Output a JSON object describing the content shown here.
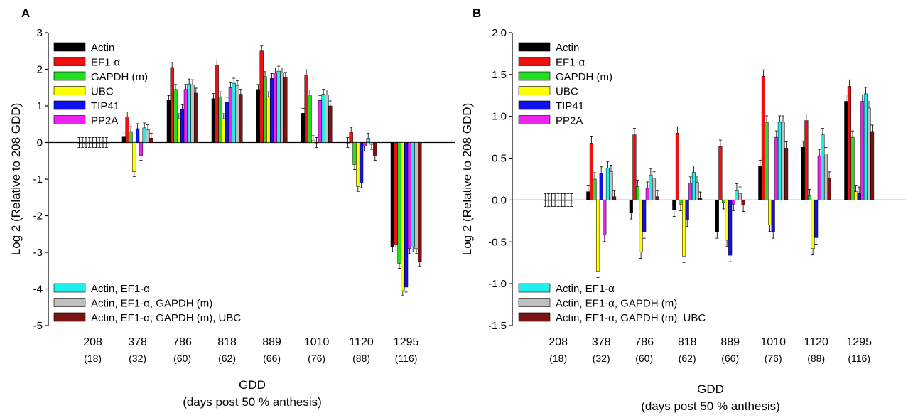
{
  "chart_data": [
    {
      "panel": "A",
      "type": "bar",
      "xlabel": "GDD",
      "xlabel2": "(days post 50 % anthesis)",
      "ylabel": "Log 2 (Relative to 208 GDD)",
      "ylim": [
        -5,
        3
      ],
      "yticks": [
        "3",
        "2",
        "1",
        "0",
        "-1",
        "-2",
        "-3",
        "-4",
        "-5"
      ],
      "yticks_values": [
        3,
        2,
        1,
        0,
        -1,
        -2,
        -3,
        -4,
        -5
      ],
      "categories": [
        "208",
        "378",
        "786",
        "818",
        "889",
        "1010",
        "1120",
        "1295"
      ],
      "category_sublabels": [
        "(18)",
        "(32)",
        "(60)",
        "(62)",
        "(66)",
        "(76)",
        "(88)",
        "(116)"
      ],
      "legend_top": [
        "Actin",
        "EF1-α",
        "GAPDH (m)",
        "UBC",
        "TIP41",
        "PP2A"
      ],
      "legend_bottom": [
        "Actin, EF1-α",
        "Actin, EF1-α, GAPDH (m)",
        "Actin, EF1-α, GAPDH (m), UBC"
      ],
      "series": [
        {
          "name": "Actin",
          "color": "#000000",
          "values": [
            0,
            0.15,
            1.15,
            1.2,
            1.45,
            0.8,
            0,
            -2.85
          ],
          "errors": [
            0.08,
            0.1,
            0.1,
            0.08,
            0.1,
            0.07,
            0.1,
            0.1
          ]
        },
        {
          "name": "EF1-α",
          "color": "#ee1111",
          "values": [
            0,
            0.7,
            2.05,
            2.12,
            2.5,
            1.85,
            0.28,
            -2.8
          ]
        },
        {
          "name": "GAPDH (m)",
          "color": "#22dd22",
          "values": [
            0,
            0.3,
            1.45,
            1.25,
            1.8,
            1.3,
            -0.6,
            -3.3
          ]
        },
        {
          "name": "UBC",
          "color": "#ffff00",
          "values": [
            0,
            -0.8,
            0.65,
            0.65,
            1.25,
            0.05,
            -1.2,
            -4.05
          ]
        },
        {
          "name": "TIP41",
          "color": "#1111ee",
          "values": [
            0,
            0.38,
            0.9,
            1.1,
            1.75,
            0,
            -1.1,
            -3.95
          ]
        },
        {
          "name": "PP2A",
          "color": "#ee22ee",
          "values": [
            0,
            -0.35,
            1.45,
            1.5,
            1.9,
            1.15,
            -0.1,
            -2.9
          ]
        },
        {
          "name": "Actin, EF1-α",
          "color": "#22eeee",
          "values": [
            0,
            0.4,
            1.6,
            1.62,
            1.95,
            1.32,
            0.12,
            -2.85
          ]
        },
        {
          "name": "Actin, EF1-α, GAPDH (m)",
          "color": "#c0c0c0",
          "values": [
            0,
            0.35,
            1.58,
            1.55,
            1.9,
            1.3,
            -0.05,
            -2.9
          ]
        },
        {
          "name": "Actin, EF1-α, GAPDH (m), UBC",
          "color": "#7a1414",
          "values": [
            0,
            0.12,
            1.35,
            1.32,
            1.78,
            1.0,
            -0.35,
            -3.25
          ]
        }
      ]
    },
    {
      "panel": "B",
      "type": "bar",
      "xlabel": "GDD",
      "xlabel2": "(days post 50 % anthesis)",
      "ylabel": "Log 2 (Relative to 208 GDD)",
      "ylim": [
        -1.5,
        2.0
      ],
      "yticks": [
        "2.0",
        "1.5",
        "1.0",
        "0.5",
        "0.0",
        "-0.5",
        "-1.0",
        "-1.5"
      ],
      "yticks_values": [
        2.0,
        1.5,
        1.0,
        0.5,
        0.0,
        -0.5,
        -1.0,
        -1.5
      ],
      "categories": [
        "208",
        "378",
        "786",
        "818",
        "889",
        "1010",
        "1120",
        "1295"
      ],
      "category_sublabels": [
        "(18)",
        "(32)",
        "(60)",
        "(62)",
        "(66)",
        "(76)",
        "(88)",
        "(116)"
      ],
      "legend_top": [
        "Actin",
        "EF1-α",
        "GAPDH (m)",
        "UBC",
        "TIP41",
        "PP2A"
      ],
      "legend_bottom": [
        "Actin, EF1-α",
        "Actin, EF1-α, GAPDH (m)",
        "Actin, EF1-α, GAPDH (m), UBC"
      ],
      "series": [
        {
          "name": "Actin",
          "color": "#000000",
          "values": [
            0,
            0.1,
            -0.15,
            -0.12,
            -0.38,
            0.4,
            0.63,
            1.18
          ]
        },
        {
          "name": "EF1-α",
          "color": "#ee1111",
          "values": [
            0,
            0.68,
            0.78,
            0.8,
            0.64,
            1.48,
            0.95,
            1.36
          ]
        },
        {
          "name": "GAPDH (m)",
          "color": "#22dd22",
          "values": [
            0,
            0.25,
            0.16,
            -0.05,
            -0.03,
            0.93,
            0.05,
            0.75
          ]
        },
        {
          "name": "UBC",
          "color": "#ffff00",
          "values": [
            0,
            -0.85,
            -0.62,
            -0.67,
            -0.48,
            -0.3,
            -0.58,
            0.1
          ]
        },
        {
          "name": "TIP41",
          "color": "#1111ee",
          "values": [
            0,
            0.32,
            -0.38,
            -0.24,
            -0.66,
            -0.38,
            -0.45,
            0.08
          ]
        },
        {
          "name": "PP2A",
          "color": "#ee22ee",
          "values": [
            0,
            -0.42,
            0.14,
            0.2,
            -0.05,
            0.75,
            0.53,
            1.18
          ]
        },
        {
          "name": "Actin, EF1-α",
          "color": "#22eeee",
          "values": [
            0,
            0.38,
            0.3,
            0.33,
            0.12,
            0.93,
            0.78,
            1.27
          ]
        },
        {
          "name": "Actin, EF1-α, GAPDH (m)",
          "color": "#c0c0c0",
          "values": [
            0,
            0.34,
            0.26,
            0.21,
            0.08,
            0.93,
            0.55,
            1.1
          ]
        },
        {
          "name": "Actin, EF1-α, GAPDH (m), UBC",
          "color": "#7a1414",
          "values": [
            0,
            0.04,
            0.04,
            0.02,
            -0.06,
            0.62,
            0.26,
            0.82
          ]
        }
      ]
    }
  ]
}
